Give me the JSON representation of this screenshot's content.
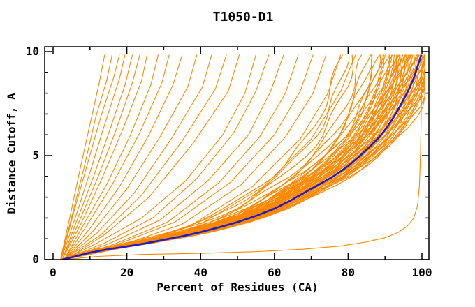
{
  "title": "T1050-D1",
  "axes": {
    "x_label": "Percent of Residues (CA)",
    "y_label": "Distance Cutoff, A",
    "x_tick_labels": [
      "0",
      "20",
      "40",
      "60",
      "80",
      "100"
    ],
    "y_tick_labels": [
      "0",
      "5",
      "10"
    ]
  },
  "chart_data": {
    "type": "line",
    "title": "T1050-D1",
    "xlabel": "Percent of Residues (CA)",
    "ylabel": "Distance Cutoff, A",
    "xlim": [
      0,
      100
    ],
    "ylim": [
      0,
      10
    ],
    "x_major_ticks": [
      0,
      20,
      40,
      60,
      80,
      100
    ],
    "x_minor_step": 10,
    "y_major_ticks": [
      0,
      5,
      10
    ],
    "y_minor_step": 1,
    "grid": false,
    "legend": "none",
    "colors": {
      "model_curves": "#ff8800",
      "highlight_curve": "#1c1ccc",
      "axis": "#000000",
      "background": "#ffffff"
    },
    "highlight_series": {
      "name": "highlighted-model",
      "points": [
        [
          2.5,
          0
        ],
        [
          6,
          0.15
        ],
        [
          10,
          0.33
        ],
        [
          15,
          0.5
        ],
        [
          20,
          0.63
        ],
        [
          25,
          0.78
        ],
        [
          30,
          0.95
        ],
        [
          35,
          1.12
        ],
        [
          40,
          1.32
        ],
        [
          45,
          1.55
        ],
        [
          50,
          1.8
        ],
        [
          55,
          2.1
        ],
        [
          60,
          2.45
        ],
        [
          64,
          2.8
        ],
        [
          68,
          3.2
        ],
        [
          72,
          3.6
        ],
        [
          76,
          4.0
        ],
        [
          80,
          4.5
        ],
        [
          83,
          4.95
        ],
        [
          86,
          5.45
        ],
        [
          88.5,
          5.9
        ],
        [
          90.5,
          6.35
        ],
        [
          92.5,
          6.9
        ],
        [
          94,
          7.35
        ],
        [
          95.5,
          7.85
        ],
        [
          96.8,
          8.3
        ],
        [
          97.8,
          8.75
        ],
        [
          98.7,
          9.2
        ],
        [
          99.3,
          9.55
        ],
        [
          99.8,
          9.85
        ]
      ]
    },
    "model_ensemble": {
      "note": "orange model curves; bundle curves share the highlight shape scaled horizontally",
      "bundle_scales": [
        0.78,
        0.8,
        0.82,
        0.84,
        0.855,
        0.865,
        0.875,
        0.885,
        0.895,
        0.9,
        0.905,
        0.91,
        0.915,
        0.92,
        0.925,
        0.93,
        0.9325,
        0.935,
        0.94,
        0.9425,
        0.945,
        0.95,
        0.9525,
        0.955,
        0.96,
        0.9625,
        0.965,
        0.97,
        0.9725,
        0.975,
        0.98,
        0.9825,
        0.985,
        0.99,
        0.9925,
        0.995,
        1.0,
        1.0025,
        1.005,
        1.01,
        1.0125,
        1.015,
        1.02,
        1.0225,
        1.025,
        1.03,
        1.0325,
        1.035,
        1.04,
        1.045,
        1.05,
        1.055,
        1.06,
        0.888,
        0.942,
        0.968
      ],
      "steep_curves": [
        [
          [
            2,
            0
          ],
          [
            4.5,
            2
          ],
          [
            7.5,
            4.5
          ],
          [
            10,
            6.5
          ],
          [
            12.5,
            8.5
          ],
          [
            14,
            9.85
          ]
        ],
        [
          [
            2,
            0
          ],
          [
            5,
            2
          ],
          [
            8.5,
            4.5
          ],
          [
            11.5,
            6.8
          ],
          [
            14.5,
            8.6
          ],
          [
            16,
            9.85
          ]
        ],
        [
          [
            2.2,
            0
          ],
          [
            5.5,
            2.2
          ],
          [
            9,
            4.4
          ],
          [
            13,
            6.9
          ],
          [
            16.5,
            8.8
          ],
          [
            18,
            9.85
          ]
        ],
        [
          [
            2.2,
            0
          ],
          [
            6,
            2
          ],
          [
            10,
            4.2
          ],
          [
            14,
            6.5
          ],
          [
            18,
            8.7
          ],
          [
            19.5,
            9.85
          ]
        ],
        [
          [
            2.5,
            0
          ],
          [
            6.5,
            1.9
          ],
          [
            11,
            4
          ],
          [
            15.5,
            6.3
          ],
          [
            19.5,
            8.4
          ],
          [
            21.5,
            9.85
          ]
        ],
        [
          [
            2.5,
            0
          ],
          [
            7,
            1.8
          ],
          [
            12,
            3.9
          ],
          [
            17,
            6.2
          ],
          [
            21.5,
            8.5
          ],
          [
            23.5,
            9.85
          ]
        ],
        [
          [
            2.5,
            0
          ],
          [
            7.5,
            1.7
          ],
          [
            13,
            3.8
          ],
          [
            19,
            6.3
          ],
          [
            24,
            8.6
          ],
          [
            25.5,
            9.85
          ]
        ],
        [
          [
            3,
            0
          ],
          [
            8,
            1.6
          ],
          [
            14.5,
            3.6
          ],
          [
            21,
            6
          ],
          [
            26.5,
            8.4
          ],
          [
            28.5,
            9.85
          ]
        ],
        [
          [
            3,
            0
          ],
          [
            9,
            1.6
          ],
          [
            16,
            3.6
          ],
          [
            23.5,
            6.1
          ],
          [
            29.5,
            8.5
          ],
          [
            31.5,
            9.85
          ]
        ],
        [
          [
            3,
            0
          ],
          [
            10,
            1.5
          ],
          [
            18,
            3.5
          ],
          [
            26,
            6
          ],
          [
            32.5,
            8.4
          ],
          [
            35,
            9.85
          ]
        ],
        [
          [
            3,
            0
          ],
          [
            11,
            1.4
          ],
          [
            20,
            3.4
          ],
          [
            29,
            5.9
          ],
          [
            36.5,
            8.3
          ],
          [
            39,
            9.85
          ]
        ],
        [
          [
            3,
            0
          ],
          [
            12,
            1.3
          ],
          [
            22,
            3.2
          ],
          [
            32,
            5.8
          ],
          [
            40.5,
            8.3
          ],
          [
            43,
            9.85
          ]
        ],
        [
          [
            3,
            0
          ],
          [
            13,
            1.2
          ],
          [
            24,
            3.1
          ],
          [
            35,
            5.7
          ],
          [
            44,
            8.2
          ],
          [
            47,
            9.85
          ]
        ],
        [
          [
            3.5,
            0
          ],
          [
            14,
            1.2
          ],
          [
            26,
            3
          ],
          [
            38,
            5.6
          ],
          [
            47.5,
            8.1
          ],
          [
            50.5,
            9.85
          ]
        ]
      ],
      "mid_curves": [
        [
          [
            3,
            0
          ],
          [
            12,
            0.8
          ],
          [
            24,
            2
          ],
          [
            36,
            3.8
          ],
          [
            46,
            6
          ],
          [
            52,
            8
          ],
          [
            55,
            9.85
          ]
        ],
        [
          [
            3,
            0
          ],
          [
            14,
            0.8
          ],
          [
            27,
            2
          ],
          [
            39,
            3.9
          ],
          [
            49,
            6.1
          ],
          [
            55,
            8.1
          ],
          [
            58.5,
            9.85
          ]
        ],
        [
          [
            3,
            0
          ],
          [
            15,
            0.75
          ],
          [
            29,
            1.9
          ],
          [
            42,
            3.8
          ],
          [
            53,
            6
          ],
          [
            59,
            8.1
          ],
          [
            62.5,
            9.85
          ]
        ],
        [
          [
            3,
            0
          ],
          [
            16,
            0.7
          ],
          [
            31,
            1.8
          ],
          [
            45,
            3.7
          ],
          [
            56,
            5.9
          ],
          [
            63,
            8
          ],
          [
            66.5,
            9.85
          ]
        ],
        [
          [
            3,
            0
          ],
          [
            17,
            0.7
          ],
          [
            33,
            1.8
          ],
          [
            48,
            3.7
          ],
          [
            60,
            6
          ],
          [
            67,
            8.1
          ],
          [
            70.5,
            9.85
          ]
        ],
        [
          [
            3,
            0
          ],
          [
            18,
            0.65
          ],
          [
            35,
            1.7
          ],
          [
            51,
            3.6
          ],
          [
            63,
            5.9
          ],
          [
            70.5,
            8
          ],
          [
            74,
            9.85
          ]
        ],
        [
          [
            3,
            0
          ],
          [
            19,
            0.6
          ],
          [
            37,
            1.6
          ],
          [
            54,
            3.5
          ],
          [
            67,
            5.8
          ],
          [
            74.5,
            8
          ],
          [
            78,
            9.85
          ]
        ],
        [
          [
            3,
            0
          ],
          [
            20,
            0.6
          ],
          [
            39,
            1.6
          ],
          [
            57,
            3.5
          ],
          [
            70,
            5.8
          ],
          [
            78,
            8.1
          ],
          [
            82,
            9.85
          ]
        ]
      ],
      "flat_outlier_curve": [
        [
          3,
          0
        ],
        [
          12,
          0.15
        ],
        [
          25,
          0.25
        ],
        [
          40,
          0.3
        ],
        [
          55,
          0.38
        ],
        [
          68,
          0.5
        ],
        [
          78,
          0.65
        ],
        [
          85,
          0.85
        ],
        [
          90,
          1.05
        ],
        [
          93.5,
          1.3
        ],
        [
          96,
          1.6
        ],
        [
          97.8,
          2.0
        ],
        [
          98.8,
          2.6
        ],
        [
          99.3,
          3.5
        ],
        [
          99.6,
          5.0
        ],
        [
          99.8,
          6.8
        ],
        [
          99.9,
          8.2
        ],
        [
          100,
          9.3
        ]
      ]
    }
  }
}
